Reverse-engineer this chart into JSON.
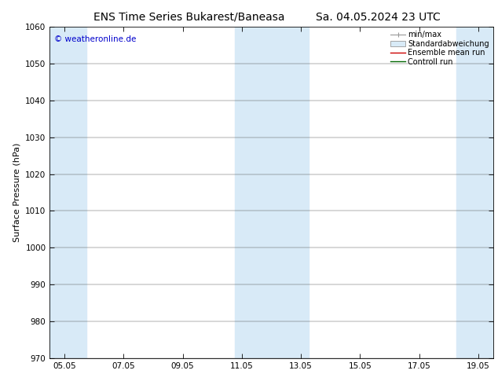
{
  "title_left": "ENS Time Series Bukarest/Baneasa",
  "title_right": "Sa. 04.05.2024 23 UTC",
  "ylabel": "Surface Pressure (hPa)",
  "ylim": [
    970,
    1060
  ],
  "yticks": [
    970,
    980,
    990,
    1000,
    1010,
    1020,
    1030,
    1040,
    1050,
    1060
  ],
  "xtick_labels": [
    "05.05",
    "07.05",
    "09.05",
    "11.05",
    "13.05",
    "15.05",
    "17.05",
    "19.05"
  ],
  "xtick_positions": [
    0,
    2,
    4,
    6,
    8,
    10,
    12,
    14
  ],
  "xlim": [
    -0.5,
    14.5
  ],
  "shaded_bands": [
    {
      "x_start": -0.5,
      "x_end": 0.75
    },
    {
      "x_start": 5.75,
      "x_end": 8.25
    },
    {
      "x_start": 13.25,
      "x_end": 14.5
    }
  ],
  "band_color": "#d8eaf7",
  "background_color": "#ffffff",
  "copyright_text": "© weatheronline.de",
  "copyright_color": "#0000cc",
  "title_fontsize": 10,
  "axis_label_fontsize": 8,
  "tick_fontsize": 7.5,
  "legend_fontsize": 7
}
